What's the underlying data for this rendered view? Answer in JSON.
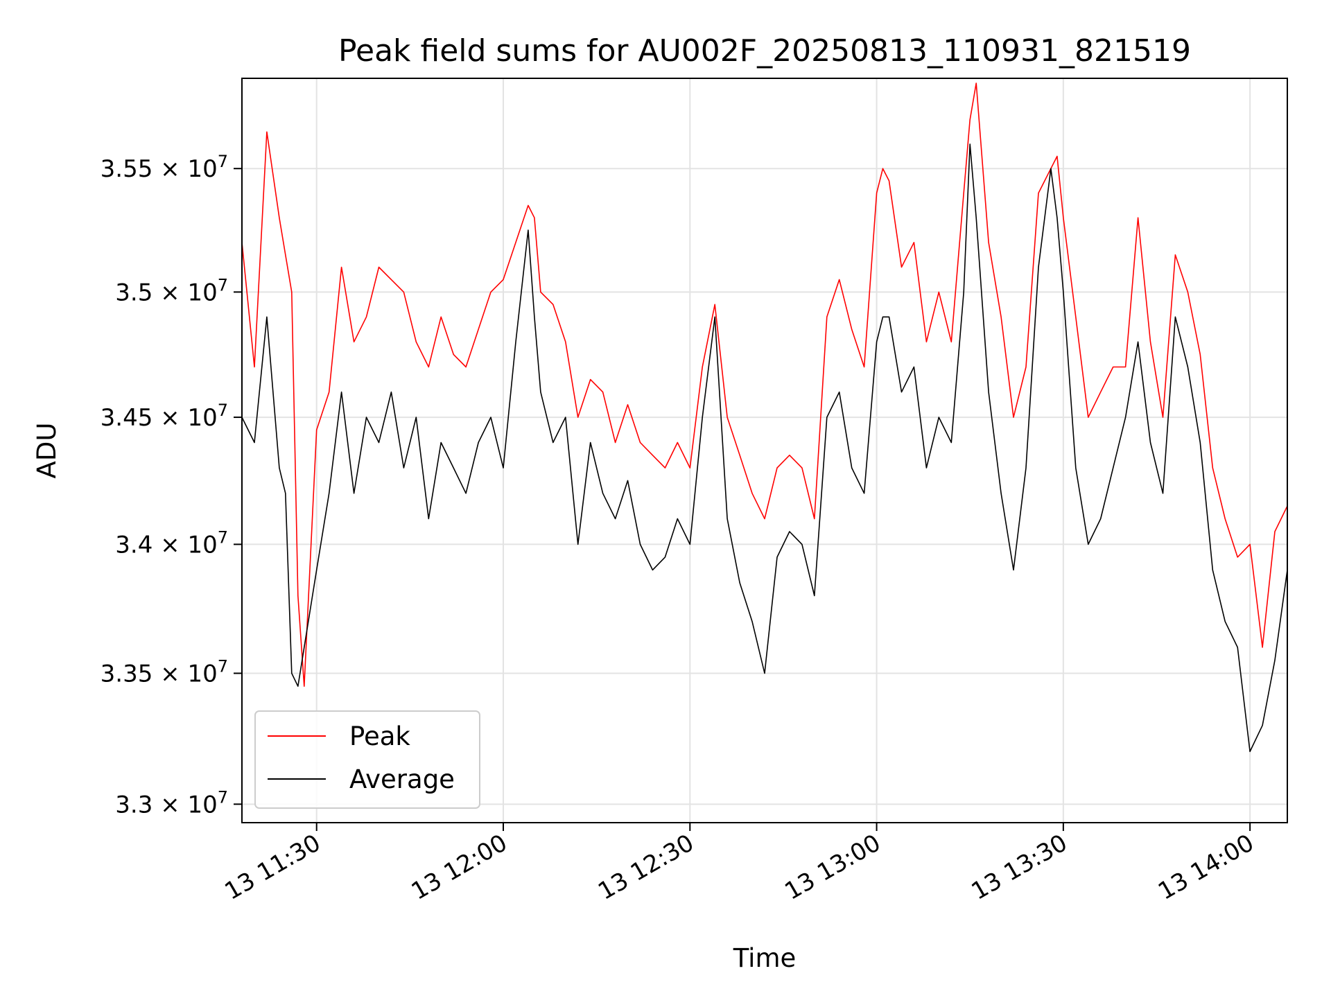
{
  "chart_data": {
    "type": "line",
    "title": "Peak field sums for AU002F_20250813_110931_821519",
    "xlabel": "Time",
    "ylabel": "ADU",
    "x_ticks": [
      "13 11:30",
      "13 12:00",
      "13 12:30",
      "13 13:00",
      "13 13:30",
      "13 14:00"
    ],
    "y_ticks": [
      {
        "value": 33000000,
        "mantissa": "3.3",
        "exp": "7"
      },
      {
        "value": 33500000,
        "mantissa": "3.35",
        "exp": "7"
      },
      {
        "value": 34000000,
        "mantissa": "3.4",
        "exp": "7"
      },
      {
        "value": 34500000,
        "mantissa": "3.45",
        "exp": "7"
      },
      {
        "value": 35000000,
        "mantissa": "3.5",
        "exp": "7"
      },
      {
        "value": 35500000,
        "mantissa": "3.55",
        "exp": "7"
      }
    ],
    "xlim": [
      "2025-08-13 11:18",
      "2025-08-13 14:06"
    ],
    "ylim": [
      32930000,
      35870000
    ],
    "y_scale": "log",
    "grid": true,
    "legend_position": "bottom-left",
    "series": [
      {
        "name": "Peak",
        "color": "#ff0000",
        "x": [
          "11:18",
          "11:20",
          "11:22",
          "11:24",
          "11:25",
          "11:26",
          "11:27",
          "11:28",
          "11:30",
          "11:32",
          "11:34",
          "11:36",
          "11:38",
          "11:40",
          "11:42",
          "11:44",
          "11:46",
          "11:48",
          "11:50",
          "11:52",
          "11:54",
          "11:56",
          "11:58",
          "12:00",
          "12:02",
          "12:04",
          "12:05",
          "12:06",
          "12:08",
          "12:10",
          "12:12",
          "12:14",
          "12:16",
          "12:18",
          "12:20",
          "12:22",
          "12:24",
          "12:26",
          "12:28",
          "12:30",
          "12:32",
          "12:34",
          "12:36",
          "12:38",
          "12:40",
          "12:42",
          "12:44",
          "12:46",
          "12:48",
          "12:50",
          "12:52",
          "12:54",
          "12:56",
          "12:58",
          "13:00",
          "13:01",
          "13:02",
          "13:04",
          "13:06",
          "13:08",
          "13:10",
          "13:12",
          "13:14",
          "13:15",
          "13:16",
          "13:18",
          "13:20",
          "13:22",
          "13:24",
          "13:26",
          "13:28",
          "13:29",
          "13:30",
          "13:32",
          "13:34",
          "13:36",
          "13:38",
          "13:40",
          "13:42",
          "13:44",
          "13:46",
          "13:48",
          "13:50",
          "13:52",
          "13:54",
          "13:56",
          "13:58",
          "14:00",
          "14:02",
          "14:04",
          "14:06"
        ],
        "y": [
          35200000,
          34700000,
          35650000,
          35300000,
          35150000,
          35000000,
          33800000,
          33450000,
          34450000,
          34600000,
          35100000,
          34800000,
          34900000,
          35100000,
          35050000,
          35000000,
          34800000,
          34700000,
          34900000,
          34750000,
          34700000,
          34850000,
          35000000,
          35050000,
          35200000,
          35350000,
          35300000,
          35000000,
          34950000,
          34800000,
          34500000,
          34650000,
          34600000,
          34400000,
          34550000,
          34400000,
          34350000,
          34300000,
          34400000,
          34300000,
          34700000,
          34950000,
          34500000,
          34350000,
          34200000,
          34100000,
          34300000,
          34350000,
          34300000,
          34100000,
          34900000,
          35050000,
          34850000,
          34700000,
          35400000,
          35500000,
          35450000,
          35100000,
          35200000,
          34800000,
          35000000,
          34800000,
          35400000,
          35700000,
          35850000,
          35200000,
          34900000,
          34500000,
          34700000,
          35400000,
          35500000,
          35550000,
          35300000,
          34900000,
          34500000,
          34600000,
          34700000,
          34700000,
          35300000,
          34800000,
          34500000,
          35150000,
          35000000,
          34750000,
          34300000,
          34100000,
          33950000,
          34000000,
          33600000,
          34050000,
          34150000
        ]
      },
      {
        "name": "Average",
        "color": "#000000",
        "x": [
          "11:18",
          "11:20",
          "11:22",
          "11:24",
          "11:25",
          "11:26",
          "11:27",
          "11:28",
          "11:30",
          "11:32",
          "11:34",
          "11:36",
          "11:38",
          "11:40",
          "11:42",
          "11:44",
          "11:46",
          "11:48",
          "11:50",
          "11:52",
          "11:54",
          "11:56",
          "11:58",
          "12:00",
          "12:02",
          "12:04",
          "12:05",
          "12:06",
          "12:08",
          "12:10",
          "12:12",
          "12:14",
          "12:16",
          "12:18",
          "12:20",
          "12:22",
          "12:24",
          "12:26",
          "12:28",
          "12:30",
          "12:32",
          "12:34",
          "12:36",
          "12:38",
          "12:40",
          "12:42",
          "12:44",
          "12:46",
          "12:48",
          "12:50",
          "12:52",
          "12:54",
          "12:56",
          "12:58",
          "13:00",
          "13:01",
          "13:02",
          "13:04",
          "13:06",
          "13:08",
          "13:10",
          "13:12",
          "13:14",
          "13:15",
          "13:16",
          "13:18",
          "13:20",
          "13:22",
          "13:24",
          "13:26",
          "13:28",
          "13:29",
          "13:30",
          "13:32",
          "13:34",
          "13:36",
          "13:38",
          "13:40",
          "13:42",
          "13:44",
          "13:46",
          "13:48",
          "13:50",
          "13:52",
          "13:54",
          "13:56",
          "13:58",
          "14:00",
          "14:02",
          "14:04",
          "14:06"
        ],
        "y": [
          34500000,
          34400000,
          34900000,
          34300000,
          34200000,
          33500000,
          33450000,
          33600000,
          33900000,
          34200000,
          34600000,
          34200000,
          34500000,
          34400000,
          34600000,
          34300000,
          34500000,
          34100000,
          34400000,
          34300000,
          34200000,
          34400000,
          34500000,
          34300000,
          34800000,
          35250000,
          34900000,
          34600000,
          34400000,
          34500000,
          34000000,
          34400000,
          34200000,
          34100000,
          34250000,
          34000000,
          33900000,
          33950000,
          34100000,
          34000000,
          34500000,
          34900000,
          34100000,
          33850000,
          33700000,
          33500000,
          33950000,
          34050000,
          34000000,
          33800000,
          34500000,
          34600000,
          34300000,
          34200000,
          34800000,
          34900000,
          34900000,
          34600000,
          34700000,
          34300000,
          34500000,
          34400000,
          35000000,
          35600000,
          35300000,
          34600000,
          34200000,
          33900000,
          34300000,
          35100000,
          35500000,
          35300000,
          35000000,
          34300000,
          34000000,
          34100000,
          34300000,
          34500000,
          34800000,
          34400000,
          34200000,
          34900000,
          34700000,
          34400000,
          33900000,
          33700000,
          33600000,
          33200000,
          33300000,
          33550000,
          33900000
        ]
      }
    ]
  }
}
